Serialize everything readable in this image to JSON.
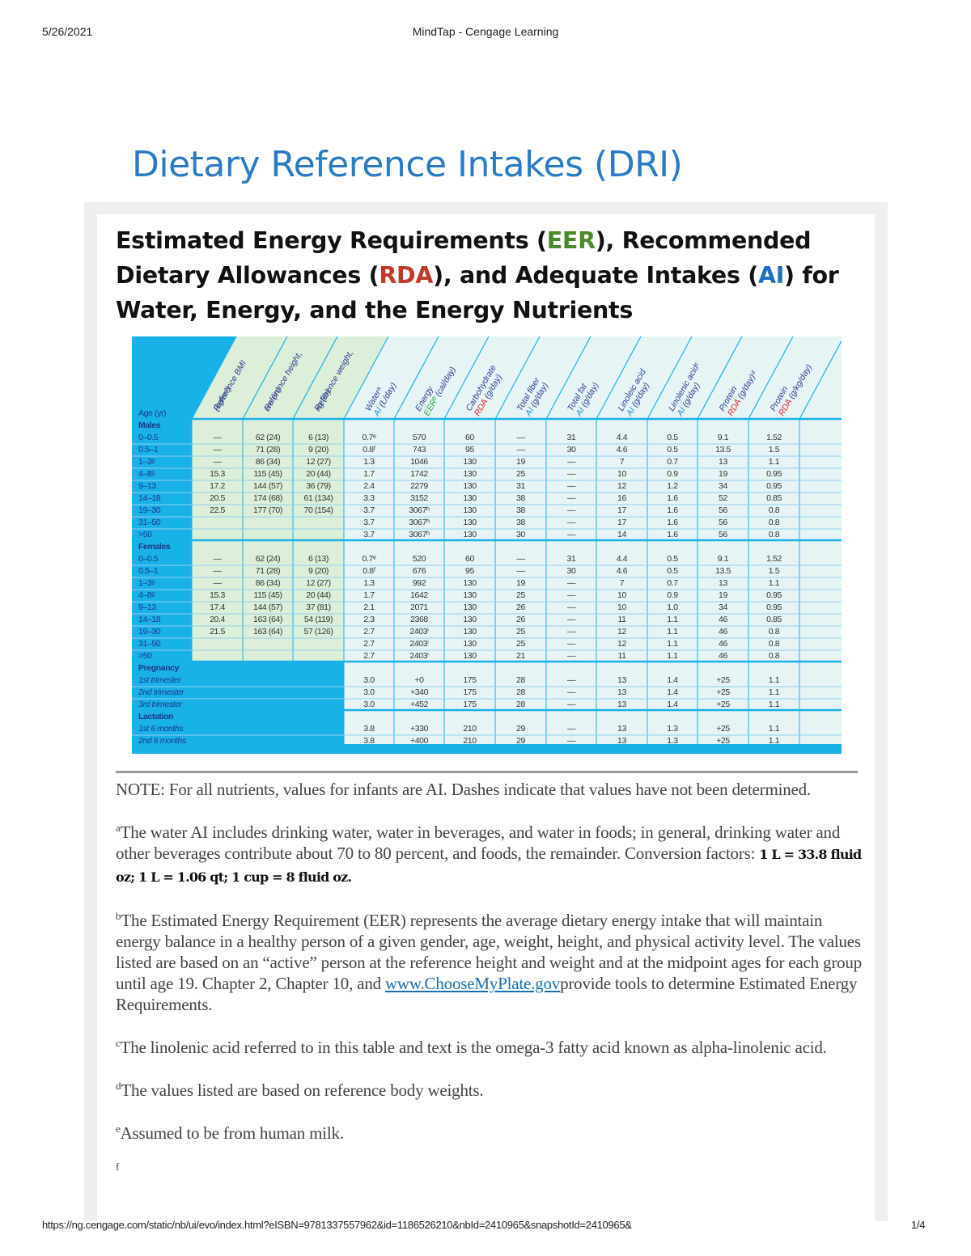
{
  "print_header": {
    "date": "5/26/2021",
    "page_title": "MindTap - Cengage Learning"
  },
  "print_footer": {
    "url": "https://ng.cengage.com/static/nb/ui/evo/index.html?eISBN=9781337557962&id=1186526210&nbId=2410965&snapshotId=2410965&",
    "page": "1/4"
  },
  "title": "Dietary Reference Intakes (DRI)",
  "heading": {
    "p1": "Estimated Energy Requirements (",
    "eer": "EER",
    "p2": "), Recommended Dietary Allowances (",
    "rda": "RDA",
    "p3": "), and Adequate Intakes (",
    "ai": "AI",
    "p4": ") for Water, Energy, and the Energy Nutrients"
  },
  "colors": {
    "title": "#2a7bc4",
    "eer": "#4a8a24",
    "rda": "#c0392b",
    "ai": "#1e6fc0",
    "table_blue": "#1ab0e8",
    "ref_green": "#dcefd9",
    "body_pale": "#e6f4f6"
  },
  "table": {
    "age_header": "Age (yr)",
    "columns": [
      {
        "l1": "Reference BMI",
        "tag": "",
        "rest": "(kg/m²)",
        "tag_color": ""
      },
      {
        "l1": "Reference height,",
        "tag": "",
        "rest": "cm (in)",
        "tag_color": ""
      },
      {
        "l1": "Reference weight,",
        "tag": "",
        "rest": "kg (lb)",
        "tag_color": ""
      },
      {
        "l1": "Waterᵃ",
        "tag": "AI",
        "rest": " (L/day)",
        "tag_color": "#1e8fc8"
      },
      {
        "l1": "Energy",
        "tag": "EERᵇ",
        "rest": " (cal/day)",
        "tag_color": "#2aa84a"
      },
      {
        "l1": "Carbohydrate",
        "tag": "RDA",
        "rest": " (g/day)",
        "tag_color": "#e0202a"
      },
      {
        "l1": "Total fiber",
        "tag": "AI",
        "rest": " (g/day)",
        "tag_color": "#1e8fc8"
      },
      {
        "l1": "Total fat",
        "tag": "AI",
        "rest": " (g/day)",
        "tag_color": "#1e8fc8"
      },
      {
        "l1": "Linoleic acid",
        "tag": "AI",
        "rest": " (g/day)",
        "tag_color": "#1e8fc8"
      },
      {
        "l1": "Linolenic acidᶜ",
        "tag": "AI",
        "rest": " (g/day)",
        "tag_color": "#1e8fc8"
      },
      {
        "l1": "Protein",
        "tag": "RDA",
        "rest": " (g/day)ᵈ",
        "tag_color": "#e0202a"
      },
      {
        "l1": "Protein",
        "tag": "RDA",
        "rest": " (g/kg/day)",
        "tag_color": "#e0202a"
      }
    ],
    "groups": [
      {
        "label": "Males",
        "italic": false,
        "rows": [
          {
            "age": "0–0.5",
            "v": [
              "—",
              "62 (24)",
              "6 (13)",
              "0.7ᵉ",
              "570",
              "60",
              "—",
              "31",
              "4.4",
              "0.5",
              "9.1",
              "1.52"
            ]
          },
          {
            "age": "0.5–1",
            "v": [
              "—",
              "71 (28)",
              "9 (20)",
              "0.8ᶠ",
              "743",
              "95",
              "—",
              "30",
              "4.6",
              "0.5",
              "13.5",
              "1.5"
            ]
          },
          {
            "age": "1–3ᵍ",
            "v": [
              "—",
              "86 (34)",
              "12 (27)",
              "1.3",
              "1046",
              "130",
              "19",
              "—",
              "7",
              "0.7",
              "13",
              "1.1"
            ]
          },
          {
            "age": "4–8ᵍ",
            "v": [
              "15.3",
              "115 (45)",
              "20 (44)",
              "1.7",
              "1742",
              "130",
              "25",
              "—",
              "10",
              "0.9",
              "19",
              "0.95"
            ]
          },
          {
            "age": "9–13",
            "v": [
              "17.2",
              "144 (57)",
              "36 (79)",
              "2.4",
              "2279",
              "130",
              "31",
              "—",
              "12",
              "1.2",
              "34",
              "0.95"
            ]
          },
          {
            "age": "14–18",
            "v": [
              "20.5",
              "174 (68)",
              "61 (134)",
              "3.3",
              "3152",
              "130",
              "38",
              "—",
              "16",
              "1.6",
              "52",
              "0.85"
            ]
          },
          {
            "age": "19–30",
            "v": [
              "22.5",
              "177 (70)",
              "70 (154)",
              "3.7",
              "3067ʰ",
              "130",
              "38",
              "—",
              "17",
              "1.6",
              "56",
              "0.8"
            ]
          },
          {
            "age": "31–50",
            "v": [
              "",
              "",
              "",
              "3.7",
              "3067ʰ",
              "130",
              "38",
              "—",
              "17",
              "1.6",
              "56",
              "0.8"
            ]
          },
          {
            "age": ">50",
            "v": [
              "",
              "",
              "",
              "3.7",
              "3067ʰ",
              "130",
              "30",
              "—",
              "14",
              "1.6",
              "56",
              "0.8"
            ]
          }
        ]
      },
      {
        "label": "Females",
        "italic": false,
        "rows": [
          {
            "age": "0–0.5",
            "v": [
              "—",
              "62 (24)",
              "6 (13)",
              "0.7ᵉ",
              "520",
              "60",
              "—",
              "31",
              "4.4",
              "0.5",
              "9.1",
              "1.52"
            ]
          },
          {
            "age": "0.5–1",
            "v": [
              "—",
              "71 (28)",
              "9 (20)",
              "0.8ᶠ",
              "676",
              "95",
              "—",
              "30",
              "4.6",
              "0.5",
              "13.5",
              "1.5"
            ]
          },
          {
            "age": "1–3ᵍ",
            "v": [
              "—",
              "86 (34)",
              "12 (27)",
              "1.3",
              "992",
              "130",
              "19",
              "—",
              "7",
              "0.7",
              "13",
              "1.1"
            ]
          },
          {
            "age": "4–8ᵍ",
            "v": [
              "15.3",
              "115 (45)",
              "20 (44)",
              "1.7",
              "1642",
              "130",
              "25",
              "—",
              "10",
              "0.9",
              "19",
              "0.95"
            ]
          },
          {
            "age": "9–13",
            "v": [
              "17.4",
              "144 (57)",
              "37 (81)",
              "2.1",
              "2071",
              "130",
              "26",
              "—",
              "10",
              "1.0",
              "34",
              "0.95"
            ]
          },
          {
            "age": "14–18",
            "v": [
              "20.4",
              "163 (64)",
              "54 (119)",
              "2.3",
              "2368",
              "130",
              "26",
              "—",
              "11",
              "1.1",
              "46",
              "0.85"
            ]
          },
          {
            "age": "19–30",
            "v": [
              "21.5",
              "163 (64)",
              "57 (126)",
              "2.7",
              "2403ⁱ",
              "130",
              "25",
              "—",
              "12",
              "1.1",
              "46",
              "0.8"
            ]
          },
          {
            "age": "31–50",
            "v": [
              "",
              "",
              "",
              "2.7",
              "2403ⁱ",
              "130",
              "25",
              "—",
              "12",
              "1.1",
              "46",
              "0.8"
            ]
          },
          {
            "age": ">50",
            "v": [
              "",
              "",
              "",
              "2.7",
              "2403ⁱ",
              "130",
              "21",
              "—",
              "11",
              "1.1",
              "46",
              "0.8"
            ]
          }
        ]
      },
      {
        "label": "Pregnancy",
        "italic": true,
        "rows": [
          {
            "age": "1st trimester",
            "v": [
              "",
              "",
              "",
              "3.0",
              "+0",
              "175",
              "28",
              "—",
              "13",
              "1.4",
              "+25",
              "1.1"
            ]
          },
          {
            "age": "2nd trimester",
            "v": [
              "",
              "",
              "",
              "3.0",
              "+340",
              "175",
              "28",
              "—",
              "13",
              "1.4",
              "+25",
              "1.1"
            ]
          },
          {
            "age": "3rd trimester",
            "v": [
              "",
              "",
              "",
              "3.0",
              "+452",
              "175",
              "28",
              "—",
              "13",
              "1.4",
              "+25",
              "1.1"
            ]
          }
        ]
      },
      {
        "label": "Lactation",
        "italic": true,
        "rows": [
          {
            "age": "1st 6 months",
            "v": [
              "",
              "",
              "",
              "3.8",
              "+330",
              "210",
              "29",
              "—",
              "13",
              "1.3",
              "+25",
              "1.1"
            ]
          },
          {
            "age": "2nd 6 months",
            "v": [
              "",
              "",
              "",
              "3.8",
              "+400",
              "210",
              "29",
              "—",
              "13",
              "1.3",
              "+25",
              "1.1"
            ]
          }
        ]
      }
    ]
  },
  "notes": {
    "note": "NOTE: For all nutrients, values for infants are AI. Dashes indicate that values have not been determined.",
    "a_mark": "a",
    "a_text": "The water AI includes drinking water, water in beverages, and water in foods; in general, drinking water and other beverages contribute about 70 to 80 percent, and foods, the remainder. Conversion factors: ",
    "a_conv": "1 L = 33.8 fluid oz; 1 L = 1.06  qt;  1 cup = 8 fluid oz.",
    "b_mark": "b",
    "b_text": "The Estimated Energy Requirement (EER) represents the average dietary energy intake that will maintain energy balance in a healthy person of a given gender, age, weight, height, and physical activity level. The values listed are based on an “active” person at the reference height and weight and at the midpoint ages for each group until age 19. Chapter 2, Chapter 10, and ",
    "b_link": "www.ChooseMyPlate.gov",
    "b_text2": "provide tools to determine Estimated Energy Requirements.",
    "c_mark": "c",
    "c_text": "The linolenic acid referred to in this table and text is the omega-3 fatty acid known as alpha-linolenic acid.",
    "d_mark": "d",
    "d_text": "The values listed are based on reference body weights.",
    "e_mark": "e",
    "e_text": "Assumed to be from human milk.",
    "f_mark": "f"
  }
}
